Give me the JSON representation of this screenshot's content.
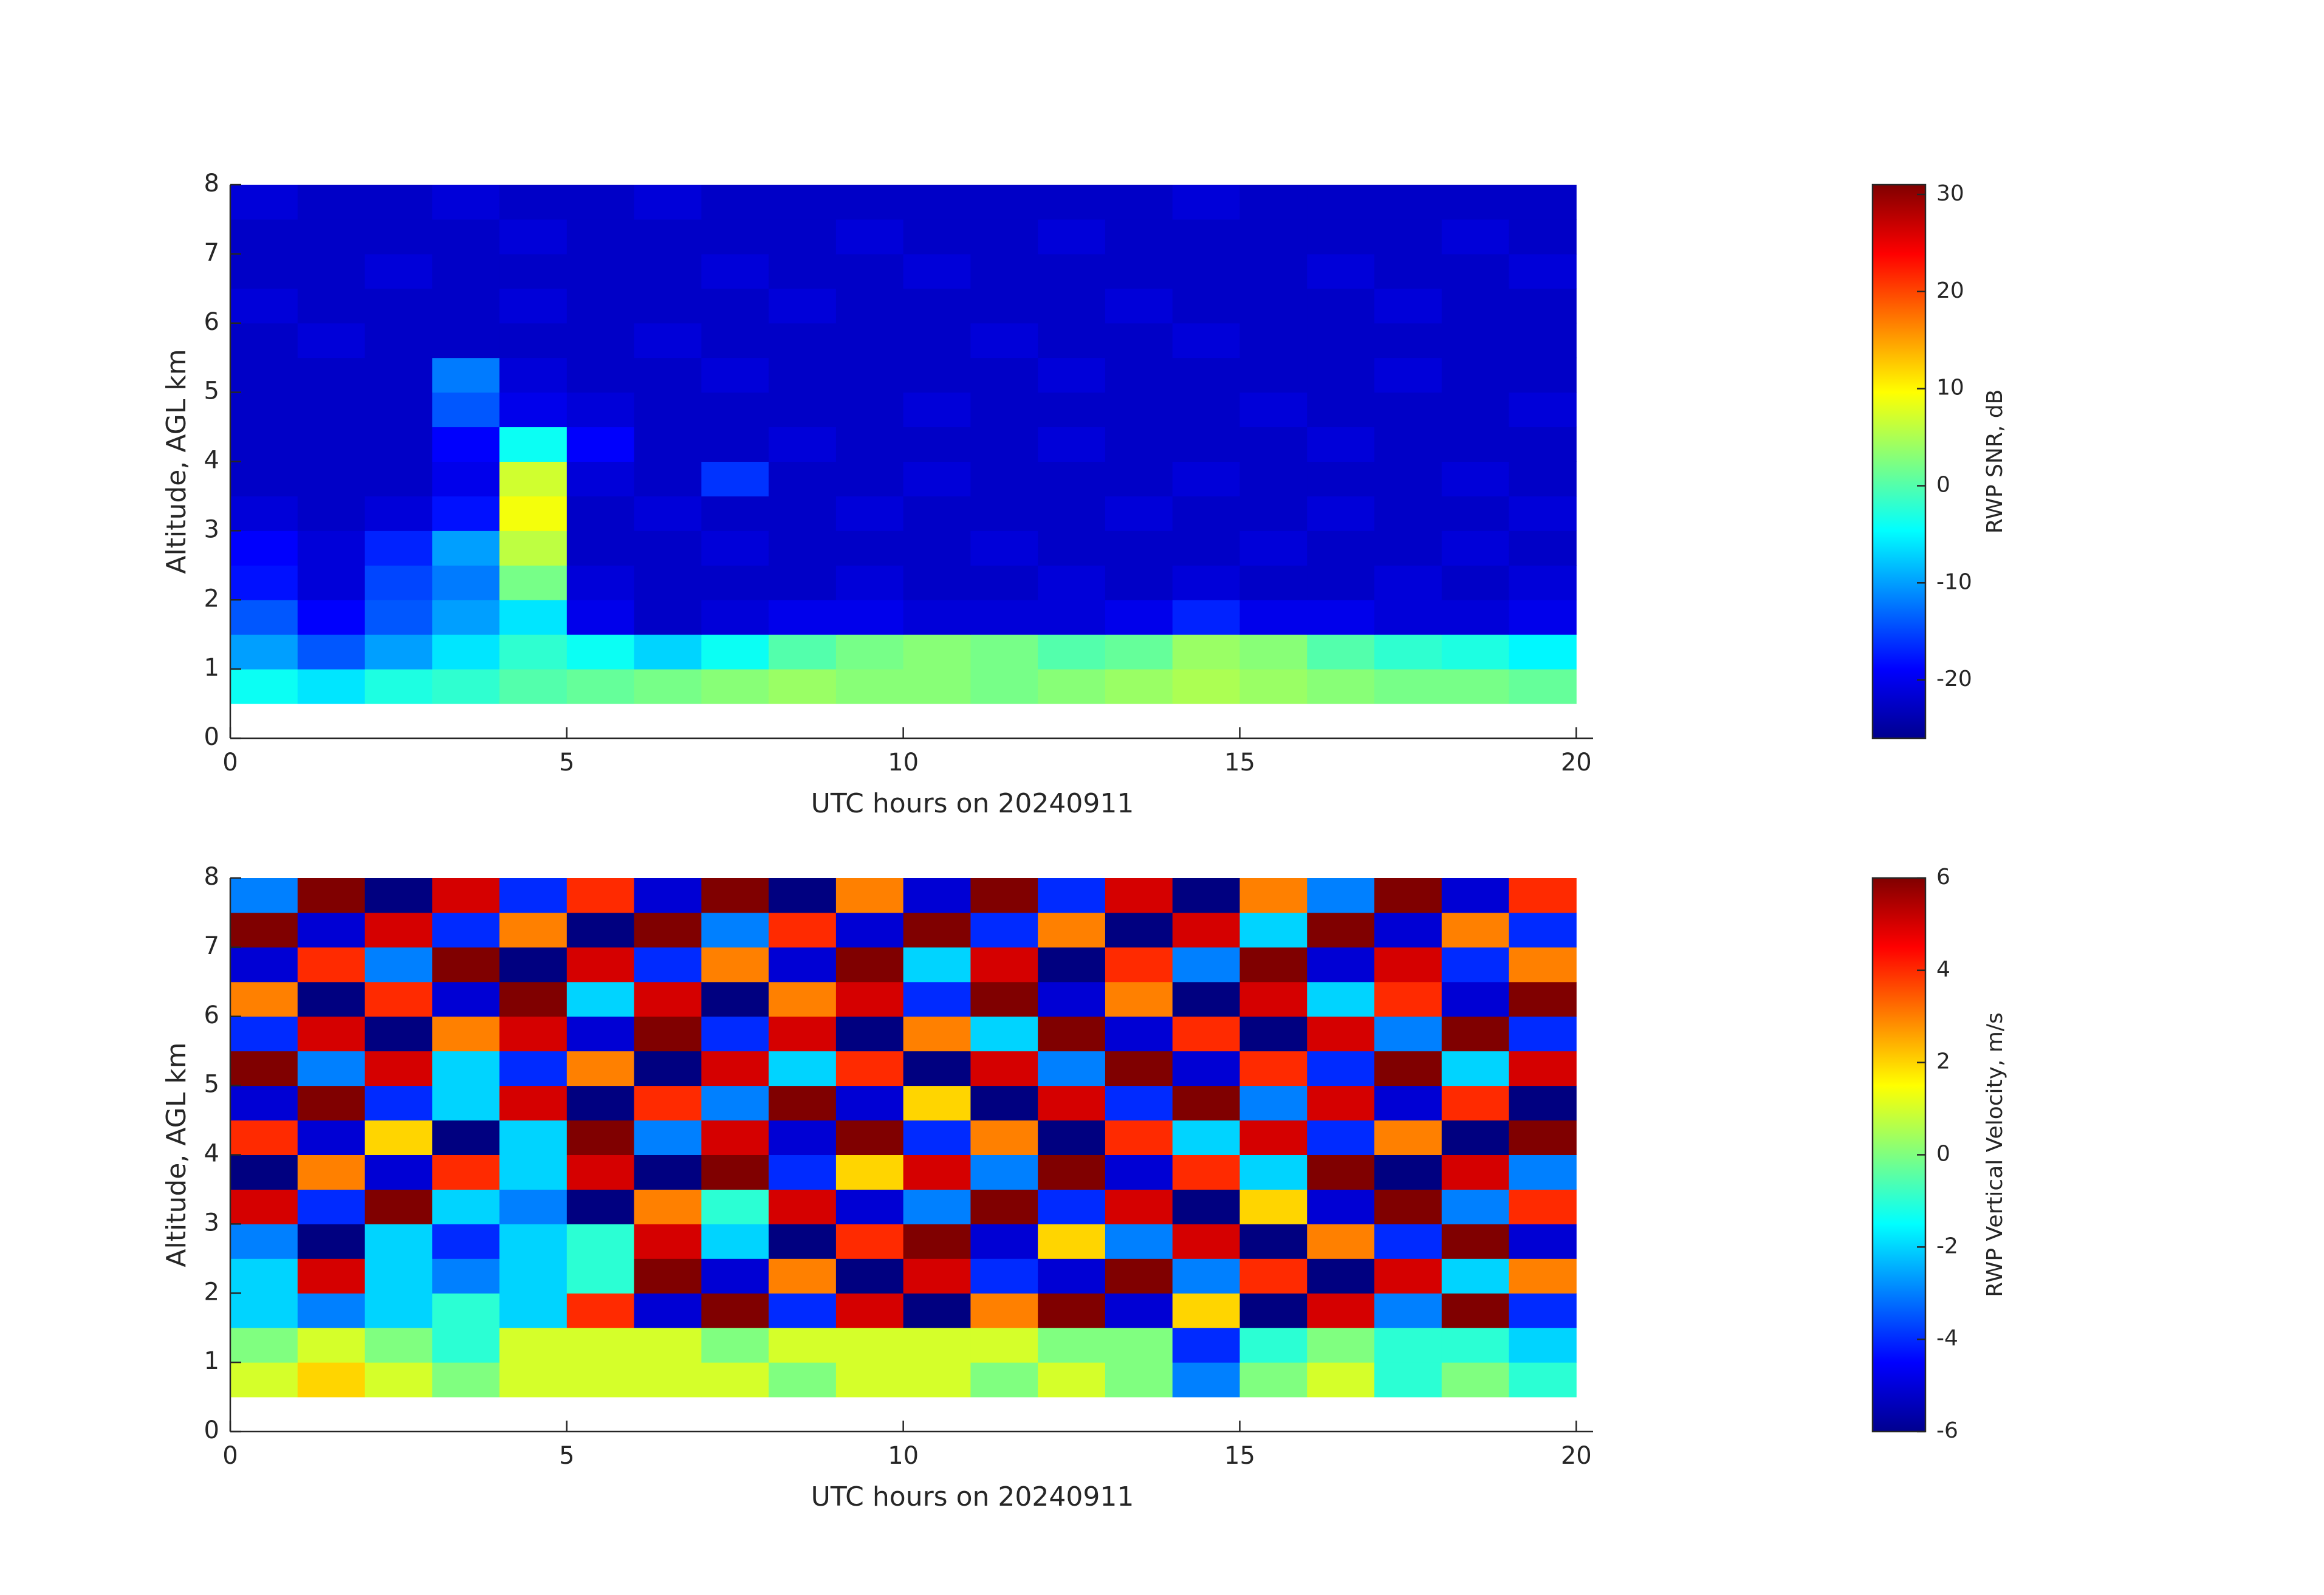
{
  "chart_data": [
    {
      "type": "heatmap",
      "xlabel": "UTC hours on 20240911",
      "ylabel": "Altitude, AGL km",
      "colorbar_label": "RWP SNR, dB",
      "colormap": "jet",
      "xlim": [
        0,
        20.25
      ],
      "ylim": [
        0,
        8
      ],
      "zlim": [
        -26,
        31
      ],
      "xticks": [
        0,
        5,
        10,
        15,
        20
      ],
      "yticks": [
        0,
        1,
        2,
        3,
        4,
        5,
        6,
        7,
        8
      ],
      "zticks": [
        -20,
        -10,
        0,
        10,
        20,
        30
      ],
      "x": [
        0,
        1,
        2,
        3,
        4,
        5,
        6,
        7,
        8,
        9,
        10,
        11,
        12,
        13,
        14,
        15,
        16,
        17,
        18,
        19,
        20
      ],
      "y": [
        0.5,
        1,
        1.5,
        2,
        2.5,
        3,
        3.5,
        4,
        4.5,
        5,
        5.5,
        6,
        6.5,
        7,
        7.5,
        8
      ],
      "values": [
        [
          -4,
          -6,
          -3,
          -2,
          0,
          1,
          2,
          3,
          4,
          3,
          3,
          2,
          3,
          4,
          5,
          4,
          3,
          2,
          2,
          1
        ],
        [
          -10,
          -14,
          -10,
          -6,
          -2,
          -4,
          -7,
          -4,
          0,
          2,
          3,
          2,
          0,
          1,
          4,
          3,
          0,
          -2,
          -3,
          -5
        ],
        [
          -14,
          -19,
          -14,
          -10,
          -6,
          -20,
          -22,
          -21,
          -20,
          -20,
          -21,
          -21,
          -21,
          -20,
          -17,
          -20,
          -20,
          -21,
          -21,
          -20
        ],
        [
          -18,
          -21,
          -15,
          -12,
          2,
          -21,
          -22,
          -22,
          -22,
          -21,
          -22,
          -22,
          -21,
          -22,
          -21,
          -22,
          -22,
          -21,
          -22,
          -21
        ],
        [
          -19,
          -21,
          -17,
          -10,
          6,
          -22,
          -22,
          -21,
          -22,
          -22,
          -22,
          -21,
          -22,
          -22,
          -22,
          -21,
          -22,
          -22,
          -21,
          -22
        ],
        [
          -21,
          -22,
          -21,
          -18,
          9,
          -22,
          -21,
          -22,
          -22,
          -21,
          -22,
          -22,
          -22,
          -21,
          -22,
          -22,
          -21,
          -22,
          -22,
          -21
        ],
        [
          -22,
          -22,
          -22,
          -20,
          7,
          -21,
          -22,
          -16,
          -22,
          -22,
          -21,
          -22,
          -22,
          -22,
          -21,
          -22,
          -22,
          -22,
          -21,
          -22
        ],
        [
          -22,
          -22,
          -22,
          -19,
          -4,
          -19,
          -22,
          -22,
          -21,
          -22,
          -22,
          -22,
          -21,
          -22,
          -22,
          -22,
          -21,
          -22,
          -22,
          -22
        ],
        [
          -22,
          -22,
          -22,
          -14,
          -20,
          -21,
          -22,
          -22,
          -22,
          -22,
          -21,
          -22,
          -22,
          -22,
          -22,
          -21,
          -22,
          -22,
          -22,
          -21
        ],
        [
          -22,
          -22,
          -22,
          -12,
          -21,
          -22,
          -22,
          -21,
          -22,
          -22,
          -22,
          -22,
          -21,
          -22,
          -22,
          -22,
          -22,
          -21,
          -22,
          -22
        ],
        [
          -22,
          -21,
          -22,
          -22,
          -22,
          -22,
          -21,
          -22,
          -22,
          -22,
          -22,
          -21,
          -22,
          -22,
          -21,
          -22,
          -22,
          -22,
          -22,
          -22
        ],
        [
          -21,
          -22,
          -22,
          -22,
          -21,
          -22,
          -22,
          -22,
          -21,
          -22,
          -22,
          -22,
          -22,
          -21,
          -22,
          -22,
          -22,
          -21,
          -22,
          -22
        ],
        [
          -22,
          -22,
          -21,
          -22,
          -22,
          -22,
          -22,
          -21,
          -22,
          -22,
          -21,
          -22,
          -22,
          -22,
          -22,
          -22,
          -21,
          -22,
          -22,
          -21
        ],
        [
          -22,
          -22,
          -22,
          -22,
          -21,
          -22,
          -22,
          -22,
          -22,
          -21,
          -22,
          -22,
          -21,
          -22,
          -22,
          -22,
          -22,
          -22,
          -21,
          -22
        ],
        [
          -21,
          -22,
          -22,
          -21,
          -22,
          -22,
          -21,
          -22,
          -22,
          -22,
          -22,
          -22,
          -22,
          -22,
          -21,
          -22,
          -22,
          -22,
          -22,
          -22
        ]
      ]
    },
    {
      "type": "heatmap",
      "xlabel": "UTC hours on 20240911",
      "ylabel": "Altitude, AGL km",
      "colorbar_label": "RWP Vertical Velocity, m/s",
      "colormap": "jet",
      "xlim": [
        0,
        20.25
      ],
      "ylim": [
        0,
        8
      ],
      "zlim": [
        -6,
        6
      ],
      "xticks": [
        0,
        5,
        10,
        15,
        20
      ],
      "yticks": [
        0,
        1,
        2,
        3,
        4,
        5,
        6,
        7,
        8
      ],
      "zticks": [
        -6,
        -4,
        -2,
        0,
        2,
        4,
        6
      ],
      "x": [
        0,
        1,
        2,
        3,
        4,
        5,
        6,
        7,
        8,
        9,
        10,
        11,
        12,
        13,
        14,
        15,
        16,
        17,
        18,
        19,
        20
      ],
      "y": [
        0.5,
        1,
        1.5,
        2,
        2.5,
        3,
        3.5,
        4,
        4.5,
        5,
        5.5,
        6,
        6.5,
        7,
        7.5,
        8
      ],
      "values": [
        [
          1,
          2,
          1,
          0,
          1,
          1,
          1,
          1,
          0,
          1,
          1,
          0,
          1,
          0,
          -3,
          0,
          1,
          -1,
          0,
          -1
        ],
        [
          0,
          1,
          0,
          -1,
          1,
          1,
          1,
          0,
          1,
          1,
          1,
          1,
          0,
          0,
          -4,
          -1,
          0,
          -1,
          -1,
          -2
        ],
        [
          -2,
          -3,
          -2,
          -1,
          -2,
          4,
          -5,
          6,
          -4,
          5,
          -6,
          3,
          6,
          -5,
          2,
          -6,
          5,
          -3,
          6,
          -4
        ],
        [
          -2,
          5,
          -2,
          -3,
          -2,
          -1,
          6,
          -5,
          3,
          -6,
          5,
          -4,
          -5,
          6,
          -3,
          4,
          -6,
          5,
          -2,
          3
        ],
        [
          -3,
          -6,
          -2,
          -4,
          -2,
          -1,
          5,
          -2,
          -6,
          4,
          6,
          -5,
          2,
          -3,
          5,
          -6,
          3,
          -4,
          6,
          -5
        ],
        [
          5,
          -4,
          6,
          -2,
          -3,
          -6,
          3,
          -1,
          5,
          -5,
          -3,
          6,
          -4,
          5,
          -6,
          2,
          -5,
          6,
          -3,
          4
        ],
        [
          -6,
          3,
          -5,
          4,
          -2,
          5,
          -6,
          6,
          -4,
          2,
          5,
          -3,
          6,
          -5,
          4,
          -2,
          6,
          -6,
          5,
          -3
        ],
        [
          4,
          -5,
          2,
          -6,
          -2,
          6,
          -3,
          5,
          -5,
          6,
          -4,
          3,
          -6,
          4,
          -2,
          5,
          -4,
          3,
          -6,
          6
        ],
        [
          -5,
          6,
          -4,
          -2,
          5,
          -6,
          4,
          -3,
          6,
          -5,
          2,
          -6,
          5,
          -4,
          6,
          -3,
          5,
          -5,
          4,
          -6
        ],
        [
          6,
          -3,
          5,
          -2,
          -4,
          3,
          -6,
          5,
          -2,
          4,
          -6,
          5,
          -3,
          6,
          -5,
          4,
          -4,
          6,
          -2,
          5
        ],
        [
          -4,
          5,
          -6,
          3,
          5,
          -5,
          6,
          -4,
          5,
          -6,
          3,
          -2,
          6,
          -5,
          4,
          -6,
          5,
          -3,
          6,
          -4
        ],
        [
          3,
          -6,
          4,
          -5,
          6,
          -2,
          5,
          -6,
          3,
          5,
          -4,
          6,
          -5,
          3,
          -6,
          5,
          -2,
          4,
          -5,
          6
        ],
        [
          -5,
          4,
          -3,
          6,
          -6,
          5,
          -4,
          3,
          -5,
          6,
          -2,
          5,
          -6,
          4,
          -3,
          6,
          -5,
          5,
          -4,
          3
        ],
        [
          6,
          -5,
          5,
          -4,
          3,
          -6,
          6,
          -3,
          4,
          -5,
          6,
          -4,
          3,
          -6,
          5,
          -2,
          6,
          -5,
          3,
          -4
        ],
        [
          -3,
          6,
          -6,
          5,
          -4,
          4,
          -5,
          6,
          -6,
          3,
          -5,
          6,
          -4,
          5,
          -6,
          3,
          -3,
          6,
          -5,
          4
        ]
      ]
    }
  ]
}
